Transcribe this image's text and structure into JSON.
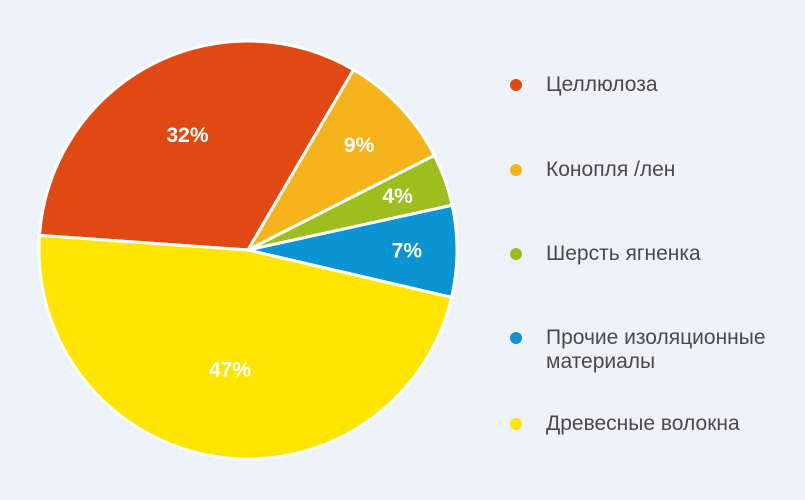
{
  "chart_data": {
    "type": "pie",
    "categories": [
      "Целлюлоза",
      "Конопля /лен",
      "Шерсть ягненка",
      "Прочие изоляционные материалы",
      "Древесные волокна"
    ],
    "values": [
      32,
      9,
      4,
      7,
      47
    ],
    "labels": [
      "32%",
      "9%",
      "4%",
      "7%",
      "47%"
    ],
    "colors": [
      "#e04a12",
      "#f5b31c",
      "#9cbf1e",
      "#0a94d4",
      "#ffe600"
    ],
    "legend_position": "right"
  },
  "legend": {
    "items": [
      {
        "label": "Целлюлоза",
        "color": "#e04a12"
      },
      {
        "label": "Конопля /лен",
        "color": "#f5b31c"
      },
      {
        "label": "Шерсть ягненка",
        "color": "#9cbf1e"
      },
      {
        "label": "Прочие изоляционные материалы",
        "color": "#0a94d4"
      },
      {
        "label": "Древесные волокна",
        "color": "#ffe600"
      }
    ]
  }
}
